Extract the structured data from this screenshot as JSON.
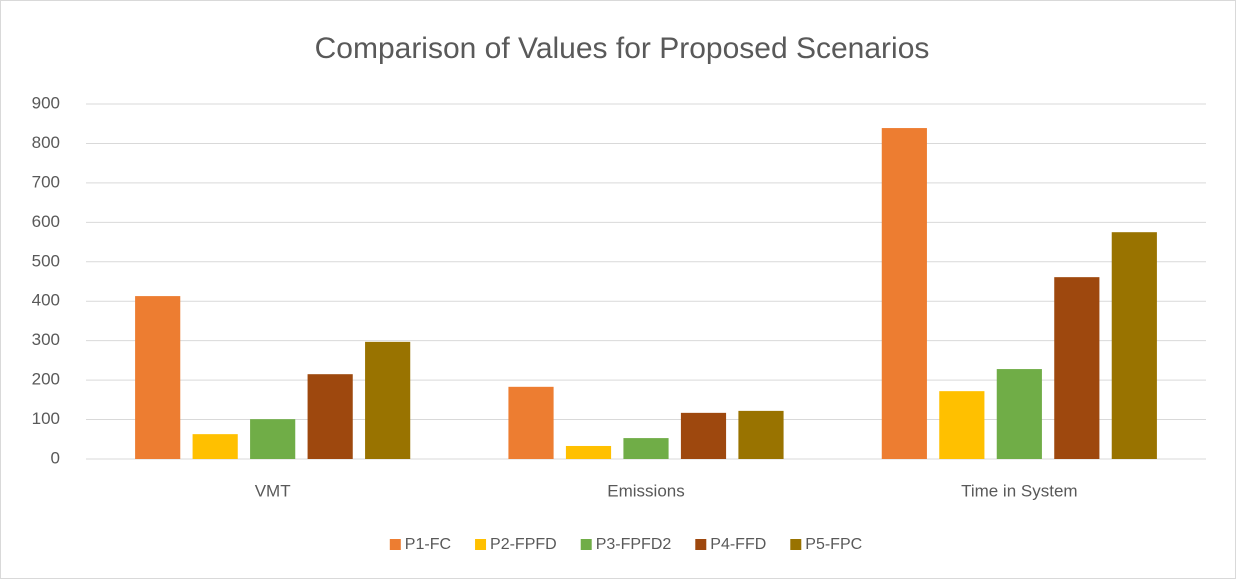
{
  "chart_data": {
    "type": "bar",
    "title": "Comparison of Values for Proposed Scenarios",
    "categories": [
      "VMT",
      "Emissions",
      "Time in System"
    ],
    "series": [
      {
        "name": "P1-FC",
        "color": "#ed7d31",
        "values": [
          413,
          183,
          839
        ]
      },
      {
        "name": "P2-FPFD",
        "color": "#ffc000",
        "values": [
          63,
          33,
          172
        ]
      },
      {
        "name": "P3-FPFD2",
        "color": "#70ad47",
        "values": [
          101,
          53,
          228
        ]
      },
      {
        "name": "P4-FFD",
        "color": "#9e480e",
        "values": [
          215,
          117,
          461
        ]
      },
      {
        "name": "P5-FPC",
        "color": "#997300",
        "values": [
          297,
          122,
          575
        ]
      }
    ],
    "ylim": [
      0,
      900
    ],
    "yticks": [
      0,
      100,
      200,
      300,
      400,
      500,
      600,
      700,
      800,
      900
    ],
    "grid": true,
    "legend": "bottom"
  }
}
